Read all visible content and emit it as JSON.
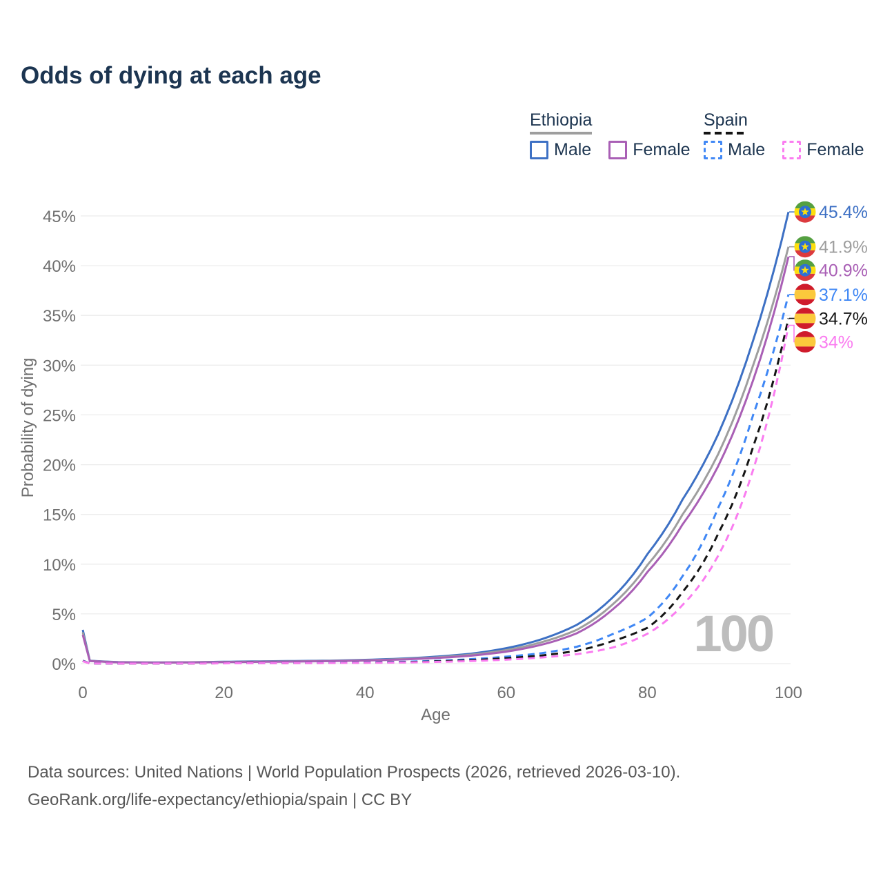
{
  "header": {
    "title": "Odds of dying at each age"
  },
  "legend": {
    "groups": [
      {
        "label": "Ethiopia",
        "underline_style": "solid",
        "underline_color": "#9e9e9e",
        "items": [
          {
            "label": "Male",
            "style": "solid",
            "color": "#3d70c4"
          },
          {
            "label": "Female",
            "style": "solid",
            "color": "#a95fb5"
          }
        ]
      },
      {
        "label": "Spain",
        "underline_style": "dashed",
        "underline_color": "#141414",
        "items": [
          {
            "label": "Male",
            "style": "dashed",
            "color": "#3f87f5"
          },
          {
            "label": "Female",
            "style": "dashed",
            "color": "#fa7cf0"
          }
        ]
      }
    ]
  },
  "chart_data": {
    "type": "line",
    "title": "Odds of dying at each age",
    "xlabel": "Age",
    "ylabel": "Probability of dying",
    "xlim": [
      0,
      100
    ],
    "ylim_percent": [
      0,
      45
    ],
    "x_ticks": [
      0,
      20,
      40,
      60,
      80,
      100
    ],
    "y_ticks_percent": [
      0,
      5,
      10,
      15,
      20,
      25,
      30,
      35,
      40,
      45
    ],
    "grid": "horizontal",
    "watermark_age": "100",
    "ages": [
      0,
      1,
      5,
      10,
      15,
      20,
      25,
      30,
      35,
      40,
      45,
      50,
      55,
      60,
      65,
      70,
      75,
      80,
      85,
      90,
      95,
      100
    ],
    "series": [
      {
        "name": "Ethiopia Male",
        "country": "Ethiopia",
        "sex": "Male",
        "line": "solid",
        "color": "#3d70c4",
        "end_label": "45.4%",
        "end_value": 45.4,
        "values": [
          3.4,
          0.3,
          0.15,
          0.12,
          0.14,
          0.19,
          0.23,
          0.26,
          0.3,
          0.38,
          0.5,
          0.7,
          1.0,
          1.55,
          2.45,
          3.9,
          6.6,
          11.0,
          16.5,
          23.0,
          32.5,
          45.4
        ]
      },
      {
        "name": "Ethiopia Both sexes",
        "country": "Ethiopia",
        "sex": "Both",
        "line": "solid",
        "color": "#9e9e9e",
        "end_label": "41.9%",
        "end_value": 41.9,
        "values": [
          3.15,
          0.28,
          0.14,
          0.11,
          0.13,
          0.17,
          0.2,
          0.23,
          0.27,
          0.34,
          0.45,
          0.62,
          0.9,
          1.35,
          2.15,
          3.4,
          5.9,
          9.9,
          15.0,
          21.0,
          30.0,
          41.9
        ]
      },
      {
        "name": "Ethiopia Female",
        "country": "Ethiopia",
        "sex": "Female",
        "line": "solid",
        "color": "#a95fb5",
        "end_label": "40.9%",
        "end_value": 40.9,
        "values": [
          2.9,
          0.26,
          0.13,
          0.1,
          0.12,
          0.15,
          0.18,
          0.21,
          0.25,
          0.31,
          0.41,
          0.56,
          0.8,
          1.2,
          1.9,
          3.05,
          5.4,
          9.2,
          14.0,
          19.8,
          28.5,
          40.9
        ]
      },
      {
        "name": "Spain Male",
        "country": "Spain",
        "sex": "Male",
        "line": "dashed",
        "color": "#3f87f5",
        "end_label": "37.1%",
        "end_value": 37.1,
        "values": [
          0.3,
          0.03,
          0.01,
          0.01,
          0.03,
          0.05,
          0.06,
          0.07,
          0.09,
          0.12,
          0.18,
          0.28,
          0.45,
          0.7,
          1.05,
          1.7,
          2.95,
          4.6,
          8.8,
          15.6,
          25.0,
          37.1
        ]
      },
      {
        "name": "Spain Both sexes",
        "country": "Spain",
        "sex": "Both",
        "line": "dashed",
        "color": "#141414",
        "end_label": "34.7%",
        "end_value": 34.7,
        "values": [
          0.27,
          0.02,
          0.01,
          0.01,
          0.02,
          0.04,
          0.05,
          0.06,
          0.07,
          0.1,
          0.14,
          0.22,
          0.35,
          0.55,
          0.82,
          1.3,
          2.25,
          3.6,
          7.2,
          13.0,
          21.8,
          34.7
        ]
      },
      {
        "name": "Spain Female",
        "country": "Spain",
        "sex": "Female",
        "line": "dashed",
        "color": "#fa7cf0",
        "end_label": "34%",
        "end_value": 34.0,
        "values": [
          0.25,
          0.02,
          0.01,
          0.01,
          0.02,
          0.03,
          0.04,
          0.05,
          0.06,
          0.08,
          0.11,
          0.17,
          0.26,
          0.4,
          0.62,
          0.95,
          1.6,
          3.0,
          5.9,
          10.8,
          19.5,
          34.0
        ]
      }
    ]
  },
  "flags": {
    "ethiopia": {
      "green": "#55a041",
      "yellow": "#fddf0d",
      "red": "#dc3a3e",
      "blue": "#2e6fd4"
    },
    "spain": {
      "red": "#cf1b2b",
      "yellow": "#fbc93c"
    }
  },
  "colors": {
    "title": "#1c3551",
    "legend_text": "#1d3550",
    "axis_text": "#6f6f6f",
    "grid": "#ececec",
    "watermark": "#bdbdbd",
    "footer_text": "#565656",
    "background": "#ffffff"
  },
  "footer": {
    "line1": "Data sources: United Nations | World Population Prospects (2026, retrieved 2026-03-10).",
    "line2": "GeoRank.org/life-expectancy/ethiopia/spain | CC BY"
  }
}
